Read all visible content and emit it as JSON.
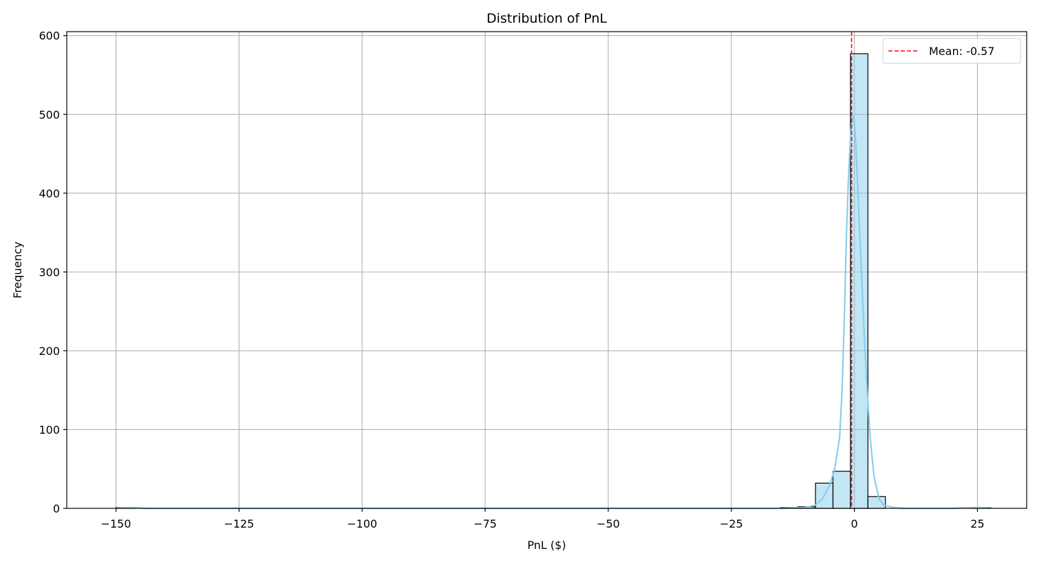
{
  "chart_data": {
    "type": "bar",
    "title": "Distribution of PnL",
    "xlabel": "PnL ($)",
    "ylabel": "Frequency",
    "xlim": [
      -160,
      35
    ],
    "ylim": [
      0,
      605
    ],
    "xticks": [
      -150,
      -125,
      -100,
      -75,
      -50,
      -25,
      0,
      25
    ],
    "xtick_labels": [
      "−150",
      "−125",
      "−100",
      "−75",
      "−50",
      "−25",
      "0",
      "25"
    ],
    "yticks": [
      0,
      100,
      200,
      300,
      400,
      500,
      600
    ],
    "ytick_labels": [
      "0",
      "100",
      "200",
      "300",
      "400",
      "500",
      "600"
    ],
    "grid": true,
    "legend_position": "top-right",
    "bin_width": 3.55,
    "bins": [
      {
        "start": -150.0,
        "count": 1
      },
      {
        "start": -15.0,
        "count": 1
      },
      {
        "start": -11.45,
        "count": 2
      },
      {
        "start": -7.9,
        "count": 32
      },
      {
        "start": -4.35,
        "count": 47
      },
      {
        "start": -0.8,
        "count": 577
      },
      {
        "start": 2.75,
        "count": 15
      },
      {
        "start": 24.05,
        "count": 1
      }
    ],
    "kde": {
      "name": "",
      "x": [
        -150,
        -148,
        -146,
        -144,
        -140,
        -100,
        -50,
        -20,
        -15,
        -12,
        -10,
        -8,
        -6.5,
        -5,
        -4,
        -3,
        -2.5,
        -2,
        -1.6,
        -1.2,
        -0.8,
        -0.5,
        -0.2,
        0,
        0.3,
        0.6,
        1.0,
        1.5,
        2.0,
        2.6,
        3.2,
        4.0,
        5.0,
        6.0,
        8.0,
        10.0,
        12.0,
        15.0,
        20.0,
        24.0,
        26.0,
        28.0
      ],
      "y": [
        0,
        1,
        1,
        0,
        0,
        0,
        0,
        0,
        0,
        0.5,
        1,
        4,
        12,
        30,
        50,
        90,
        150,
        250,
        350,
        420,
        470,
        495,
        497,
        490,
        460,
        420,
        360,
        290,
        220,
        150,
        90,
        40,
        12,
        4,
        1,
        0,
        0,
        0,
        0,
        1,
        1,
        0
      ]
    },
    "mean_line": {
      "x": -0.57,
      "label": "Mean: -0.57"
    },
    "colors": {
      "bar_fill": "#87ceeb",
      "bar_fill_opacity": 0.5,
      "bar_edge": "#000000",
      "kde": "#87ceeb",
      "mean_line": "#ff0000",
      "grid": "#b0b0b0"
    }
  }
}
